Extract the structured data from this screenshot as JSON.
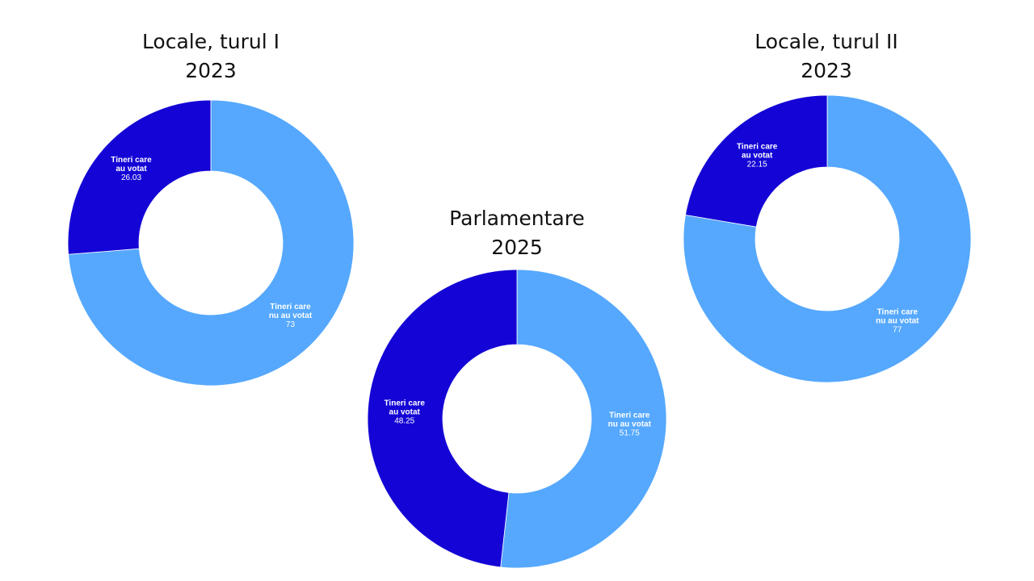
{
  "colors": {
    "voted": "#1405D6",
    "not_voted": "#55A8FD"
  },
  "chart_data": [
    {
      "type": "pie",
      "donut": true,
      "title": "Locale, turul I",
      "subtitle": "2023",
      "slices": [
        {
          "label": [
            "Tineri care",
            "nu au votat"
          ],
          "value": 73,
          "value_text": "73",
          "color": "#55A8FD"
        },
        {
          "label": [
            "Tineri care",
            "au votat"
          ],
          "value": 26.03,
          "value_text": "26.03",
          "color": "#1405D6"
        }
      ]
    },
    {
      "type": "pie",
      "donut": true,
      "title": "Parlamentare",
      "subtitle": "2025",
      "slices": [
        {
          "label": [
            "Tineri care",
            "nu au votat"
          ],
          "value": 51.75,
          "value_text": "51.75",
          "color": "#55A8FD"
        },
        {
          "label": [
            "Tineri care",
            "au votat"
          ],
          "value": 48.25,
          "value_text": "48.25",
          "color": "#1405D6"
        }
      ]
    },
    {
      "type": "pie",
      "donut": true,
      "title": "Locale, turul II",
      "subtitle": "2023",
      "slices": [
        {
          "label": [
            "Tineri care",
            "nu au votat"
          ],
          "value": 77,
          "value_text": "77",
          "color": "#55A8FD"
        },
        {
          "label": [
            "Tineri care",
            "au votat"
          ],
          "value": 22.15,
          "value_text": "22.15",
          "color": "#1405D6"
        }
      ]
    }
  ]
}
